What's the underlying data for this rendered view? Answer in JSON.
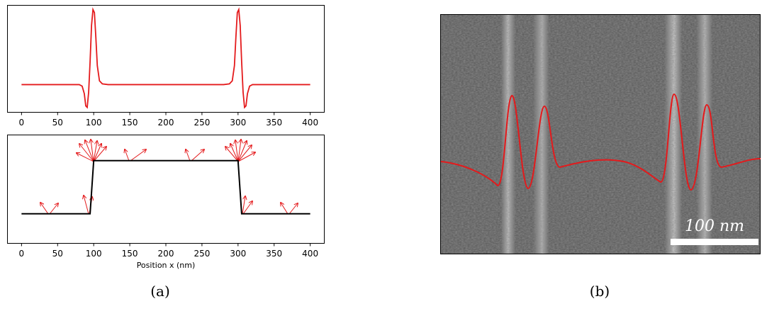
{
  "chart_data": [
    {
      "type": "line",
      "xlim": [
        -20,
        420
      ],
      "ylim": [
        -0.36,
        1.05
      ],
      "xticks": [
        0,
        50,
        100,
        150,
        200,
        250,
        300,
        350,
        400
      ],
      "series": [
        {
          "color": "#e41a1c",
          "x": [
            0,
            80,
            84,
            87,
            89,
            91,
            93,
            95,
            97,
            99,
            101,
            103,
            105,
            108,
            112,
            120,
            280,
            288,
            292,
            295,
            297,
            299,
            301,
            303,
            305,
            307,
            309,
            311,
            313,
            316,
            320,
            400
          ],
          "values": [
            0,
            0,
            -0.02,
            -0.12,
            -0.28,
            -0.3,
            -0.1,
            0.3,
            0.78,
            0.99,
            0.95,
            0.62,
            0.25,
            0.05,
            0.01,
            0,
            0,
            0.01,
            0.05,
            0.25,
            0.62,
            0.95,
            0.99,
            0.78,
            0.3,
            -0.1,
            -0.3,
            -0.28,
            -0.12,
            -0.02,
            0,
            0
          ]
        }
      ]
    },
    {
      "type": "line",
      "xlabel": "Position x (nm)",
      "xlim": [
        -20,
        420
      ],
      "ylim": [
        -0.55,
        1.49
      ],
      "xticks": [
        0,
        50,
        100,
        150,
        200,
        250,
        300,
        350,
        400
      ],
      "series": [
        {
          "color": "#000000",
          "x": [
            0,
            95,
            100,
            300,
            305,
            400
          ],
          "values": [
            0,
            0,
            1,
            1,
            0,
            0
          ]
        }
      ]
    }
  ],
  "image": {
    "scale_bar_label": "100 nm"
  },
  "captions": [
    "(a)",
    "(b)"
  ]
}
